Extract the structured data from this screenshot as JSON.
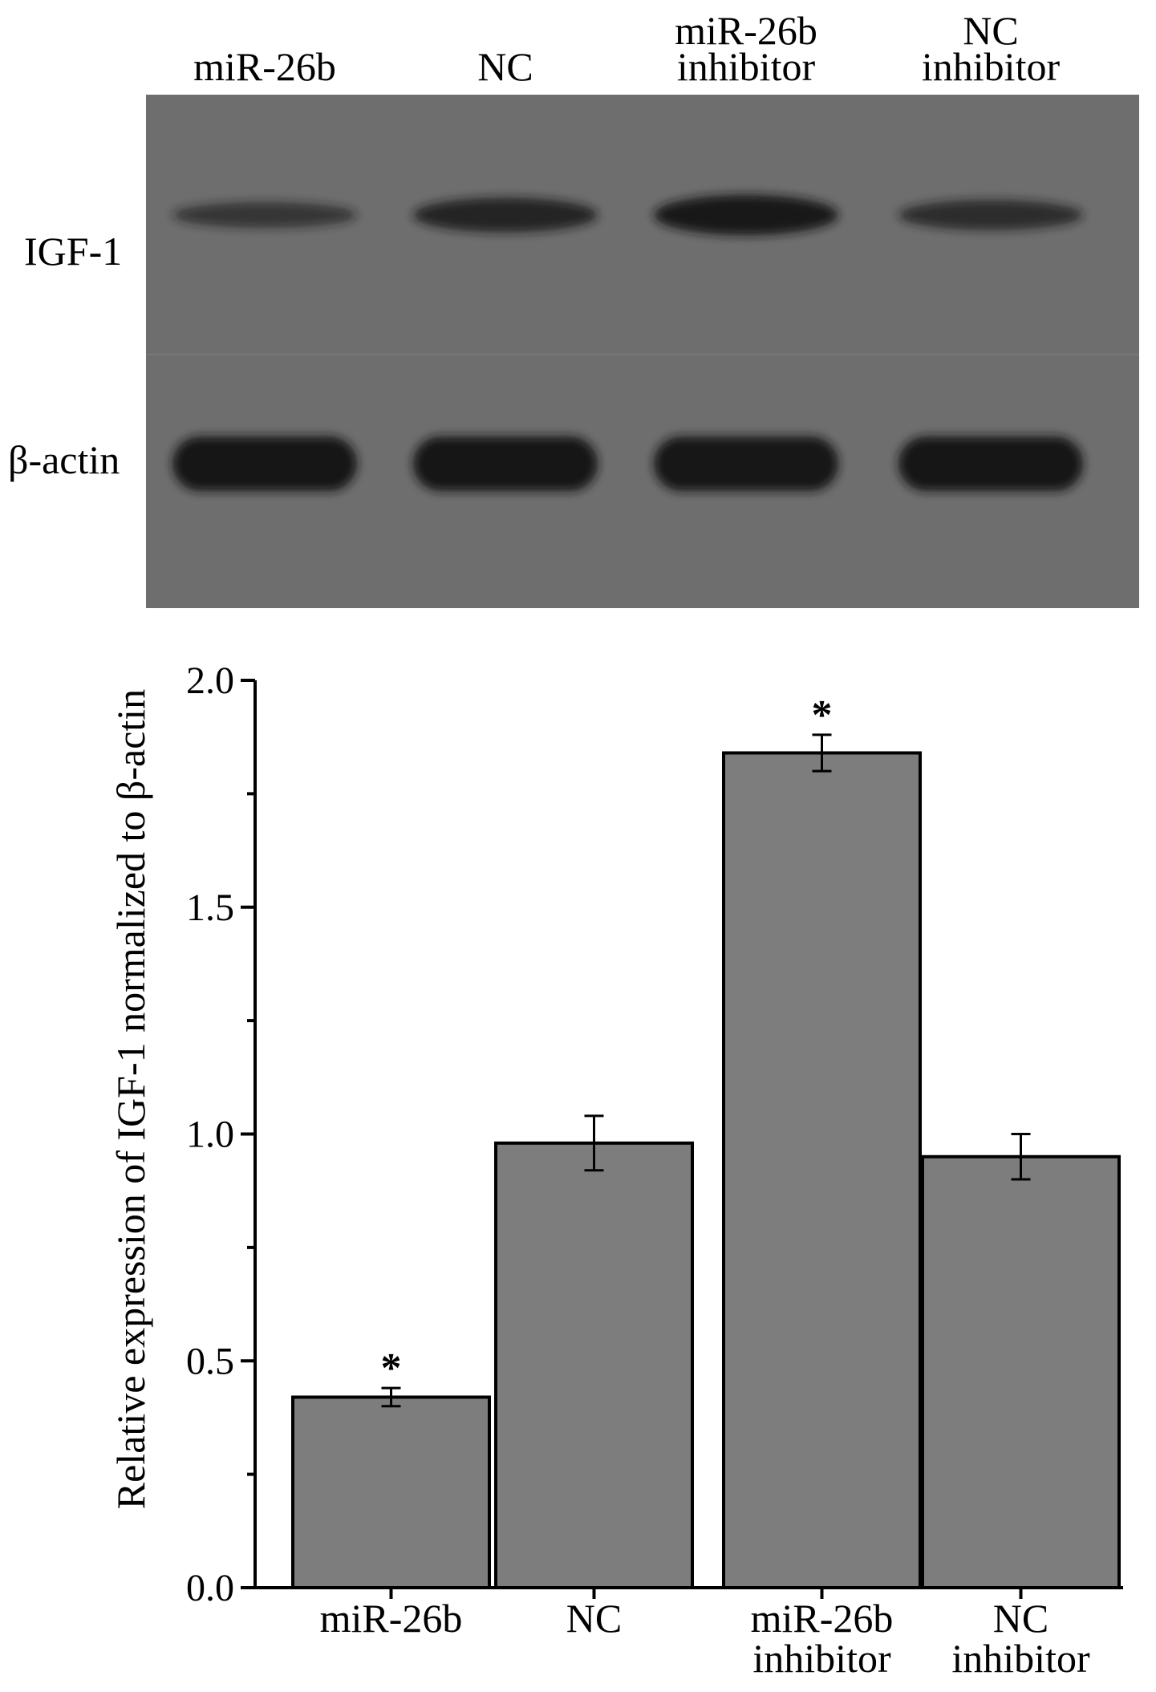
{
  "blot": {
    "lane_labels": [
      [
        "miR-26b"
      ],
      [
        "NC"
      ],
      [
        "miR-26b",
        "inhibitor"
      ],
      [
        "NC",
        "inhibitor"
      ]
    ],
    "row_labels": [
      "IGF-1",
      "β-actin"
    ],
    "igf1_band_intensity": [
      0.45,
      0.75,
      0.95,
      0.6
    ],
    "actin_band_intensity": [
      1.0,
      1.0,
      0.95,
      1.0
    ],
    "background_color": "#6e6e6e",
    "band_color": "#141414"
  },
  "chart_data": {
    "type": "bar",
    "categories": [
      [
        "miR-26b"
      ],
      [
        "NC"
      ],
      [
        "miR-26b",
        "inhibitor"
      ],
      [
        "NC",
        "inhibitor"
      ]
    ],
    "values": [
      0.42,
      0.98,
      1.84,
      0.95
    ],
    "errors": [
      0.02,
      0.06,
      0.04,
      0.05
    ],
    "significance": [
      "*",
      "",
      "*",
      ""
    ],
    "ylabel": "Relative expression of  IGF-1 normalized to β-actin",
    "ylim": [
      0.0,
      2.0
    ],
    "yticks": [
      "0.0",
      "0.5",
      "1.0",
      "1.5",
      "2.0"
    ],
    "yticks_values": [
      0.0,
      0.5,
      1.0,
      1.5,
      2.0
    ],
    "bar_color": "#7d7d7d",
    "grid": false
  }
}
